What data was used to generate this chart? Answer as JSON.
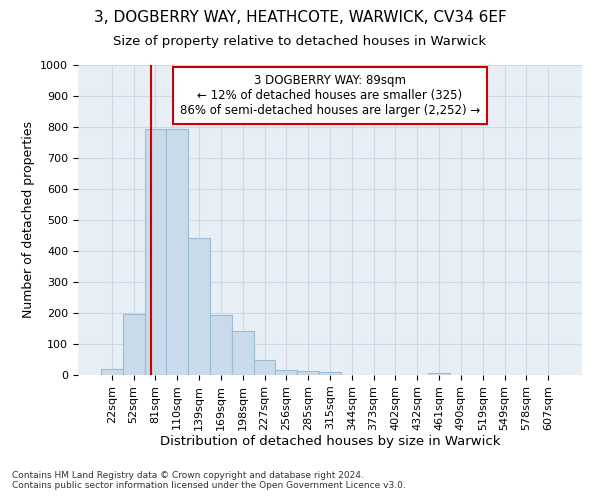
{
  "title_line1": "3, DOGBERRY WAY, HEATHCOTE, WARWICK, CV34 6EF",
  "title_line2": "Size of property relative to detached houses in Warwick",
  "xlabel": "Distribution of detached houses by size in Warwick",
  "ylabel": "Number of detached properties",
  "bar_labels": [
    "22sqm",
    "52sqm",
    "81sqm",
    "110sqm",
    "139sqm",
    "169sqm",
    "198sqm",
    "227sqm",
    "256sqm",
    "285sqm",
    "315sqm",
    "344sqm",
    "373sqm",
    "402sqm",
    "432sqm",
    "461sqm",
    "490sqm",
    "519sqm",
    "549sqm",
    "578sqm",
    "607sqm"
  ],
  "bar_values": [
    18,
    196,
    793,
    793,
    443,
    193,
    143,
    48,
    15,
    13,
    10,
    0,
    0,
    0,
    0,
    8,
    0,
    0,
    0,
    0,
    0
  ],
  "bar_color": "#c9daea",
  "bar_edge_color": "#9bbdd4",
  "grid_color": "#d0d8e4",
  "bg_color": "#e8eef5",
  "annotation_text": "3 DOGBERRY WAY: 89sqm\n← 12% of detached houses are smaller (325)\n86% of semi-detached houses are larger (2,252) →",
  "annotation_box_color": "#ffffff",
  "annotation_box_edge_color": "#cc0000",
  "property_line_color": "#cc0000",
  "ylim": [
    0,
    1000
  ],
  "yticks": [
    0,
    100,
    200,
    300,
    400,
    500,
    600,
    700,
    800,
    900,
    1000
  ],
  "footnote_line1": "Contains HM Land Registry data © Crown copyright and database right 2024.",
  "footnote_line2": "Contains public sector information licensed under the Open Government Licence v3.0.",
  "title_fontsize": 11,
  "subtitle_fontsize": 9.5,
  "ylabel_fontsize": 9,
  "xlabel_fontsize": 9.5,
  "tick_fontsize": 8,
  "footnote_fontsize": 6.5,
  "annotation_fontsize": 8.5
}
